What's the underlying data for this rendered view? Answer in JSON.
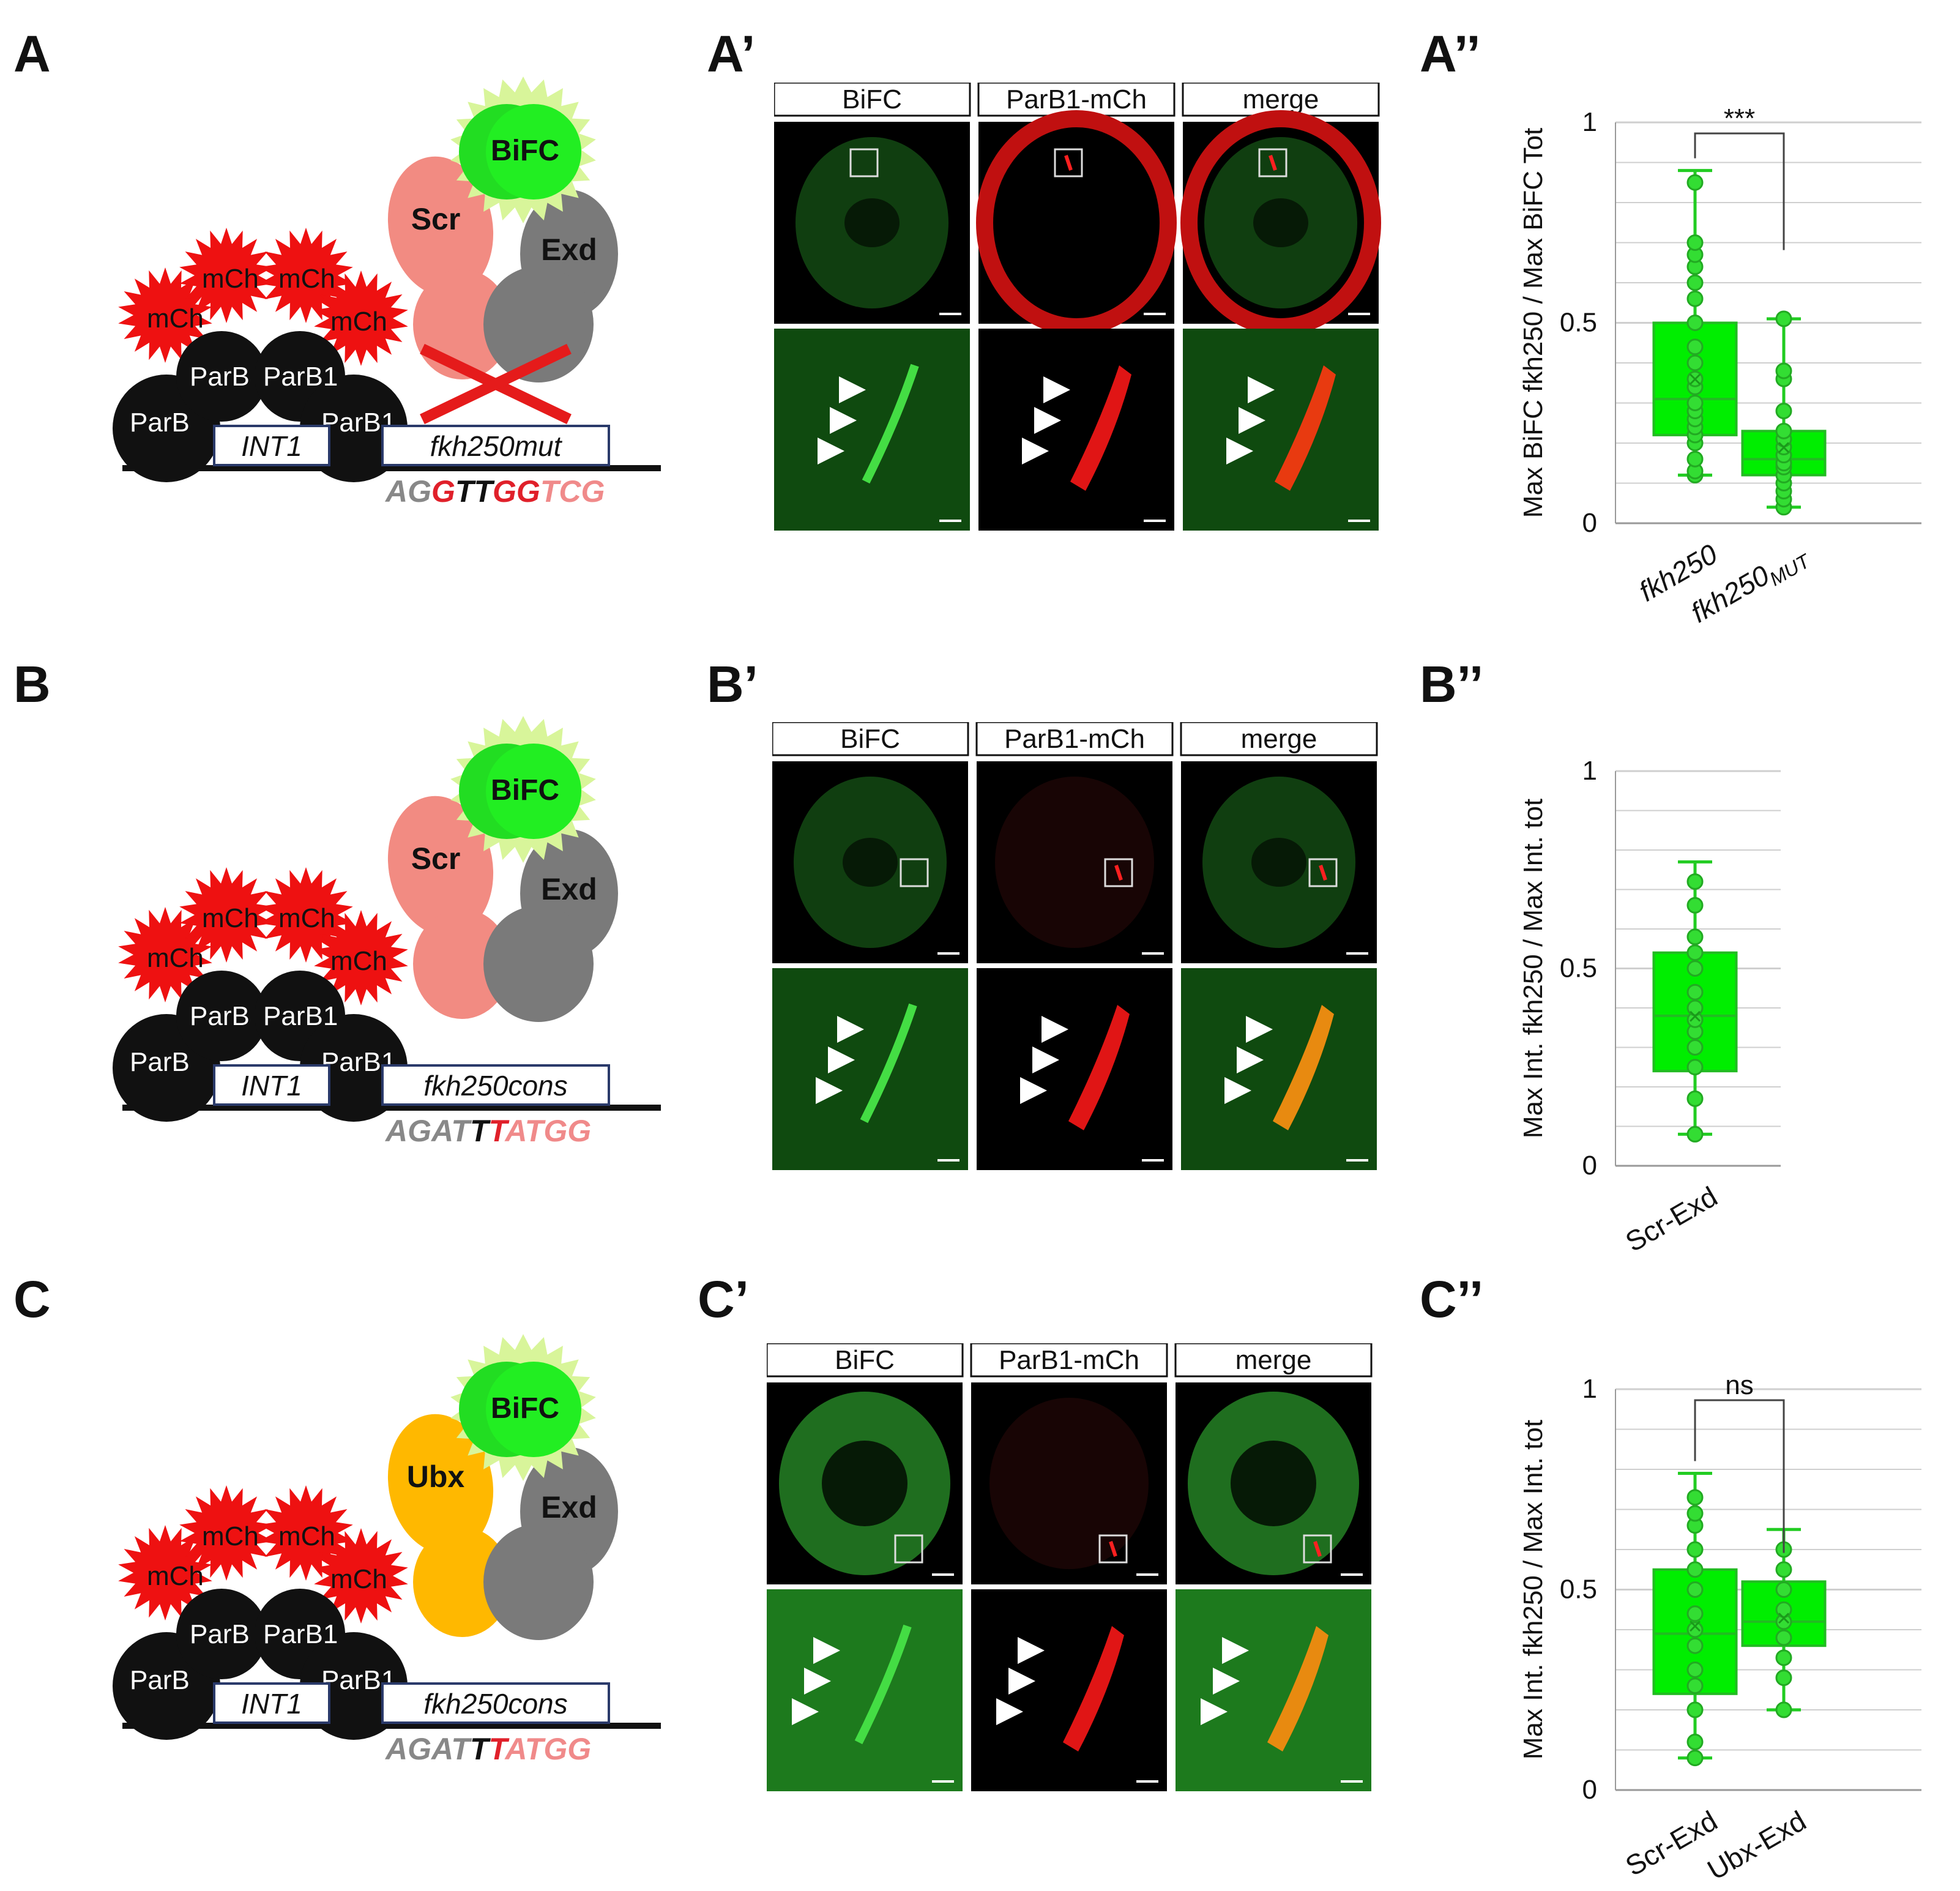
{
  "panels": {
    "A": "A",
    "A1": "A’",
    "A2": "A’’",
    "B": "B",
    "B1": "B’",
    "B2": "B’’",
    "C": "C",
    "C1": "C’",
    "C2": "C’’"
  },
  "schematics": {
    "common": {
      "mch": "mCh",
      "parb": "ParB",
      "parb1": "ParB1",
      "int1": "INT1",
      "bific": "BiFC",
      "exd": "Exd"
    },
    "A": {
      "hox": "Scr",
      "site": "fkh250mut",
      "seq": [
        "A",
        "G",
        "G",
        "T",
        "T",
        "G",
        "G",
        "T",
        "C",
        "G"
      ],
      "seq_colors": [
        "#888888",
        "#888888",
        "#e0202a",
        "#111111",
        "#111111",
        "#e0202a",
        "#e0202a",
        "#f08a8a",
        "#f08a8a",
        "#f08a8a"
      ],
      "hox_color": "#f28b82",
      "cross_color": "#e51b1b"
    },
    "B": {
      "hox": "Scr",
      "site": "fkh250cons",
      "seq": [
        "A",
        "G",
        "A",
        "T",
        "T",
        "T",
        "A",
        "T",
        "G",
        "G"
      ],
      "seq_colors": [
        "#888888",
        "#888888",
        "#888888",
        "#888888",
        "#111111",
        "#e0202a",
        "#f08a8a",
        "#f08a8a",
        "#f08a8a",
        "#f08a8a"
      ],
      "hox_color": "#f28b82"
    },
    "C": {
      "hox": "Ubx",
      "site": "fkh250cons",
      "seq": [
        "A",
        "G",
        "A",
        "T",
        "T",
        "T",
        "A",
        "T",
        "G",
        "G"
      ],
      "seq_colors": [
        "#888888",
        "#888888",
        "#888888",
        "#888888",
        "#111111",
        "#e0202a",
        "#f08a8a",
        "#f08a8a",
        "#f08a8a",
        "#f08a8a"
      ],
      "hox_color": "#ffb800"
    }
  },
  "micrographs": {
    "headers": [
      "BiFC",
      "ParB1-mCh",
      "merge"
    ]
  },
  "chart_data": [
    {
      "type": "box",
      "panel": "A’’",
      "ylabel": "Max BiFC fkh250 / Max BiFC Tot",
      "ylim": [
        0,
        1
      ],
      "yticks": [
        "0",
        "0.5",
        "1"
      ],
      "categories": [
        "fkh250",
        "fkh250MUT"
      ],
      "category_main": [
        "fkh250",
        "fkh250"
      ],
      "category_sub": [
        "",
        "MUT"
      ],
      "boxes": [
        {
          "min": 0.12,
          "q1": 0.22,
          "median": 0.31,
          "mean": 0.36,
          "q3": 0.5,
          "max": 0.88,
          "points": [
            0.12,
            0.13,
            0.16,
            0.2,
            0.22,
            0.24,
            0.26,
            0.28,
            0.3,
            0.34,
            0.36,
            0.4,
            0.44,
            0.5,
            0.56,
            0.6,
            0.64,
            0.67,
            0.7,
            0.85
          ]
        },
        {
          "min": 0.04,
          "q1": 0.12,
          "median": 0.16,
          "mean": 0.19,
          "q3": 0.23,
          "max": 0.51,
          "points": [
            0.04,
            0.06,
            0.08,
            0.1,
            0.12,
            0.14,
            0.15,
            0.17,
            0.19,
            0.21,
            0.23,
            0.28,
            0.36,
            0.38,
            0.51
          ]
        }
      ],
      "significance": "***"
    },
    {
      "type": "box",
      "panel": "B’’",
      "ylabel": "Max Int. fkh250 / Max Int. tot",
      "ylim": [
        0,
        1
      ],
      "yticks": [
        "0",
        "0.5",
        "1"
      ],
      "categories": [
        "Scr-Exd"
      ],
      "boxes": [
        {
          "min": 0.08,
          "q1": 0.24,
          "median": 0.38,
          "mean": 0.38,
          "q3": 0.54,
          "max": 0.77,
          "points": [
            0.08,
            0.17,
            0.25,
            0.3,
            0.34,
            0.37,
            0.4,
            0.44,
            0.5,
            0.54,
            0.58,
            0.66,
            0.72
          ]
        }
      ]
    },
    {
      "type": "box",
      "panel": "C’’",
      "ylabel": "Max Int. fkh250 / Max Int. tot",
      "ylim": [
        0,
        1
      ],
      "yticks": [
        "0",
        "0.5",
        "1"
      ],
      "categories": [
        "Scr-Exd",
        "Ubx-Exd"
      ],
      "boxes": [
        {
          "min": 0.08,
          "q1": 0.24,
          "median": 0.39,
          "mean": 0.41,
          "q3": 0.55,
          "max": 0.79,
          "points": [
            0.08,
            0.12,
            0.2,
            0.26,
            0.3,
            0.36,
            0.4,
            0.44,
            0.5,
            0.55,
            0.6,
            0.66,
            0.69,
            0.73
          ]
        },
        {
          "min": 0.2,
          "q1": 0.36,
          "median": 0.42,
          "mean": 0.43,
          "q3": 0.52,
          "max": 0.65,
          "points": [
            0.2,
            0.28,
            0.33,
            0.38,
            0.42,
            0.45,
            0.5,
            0.55,
            0.6
          ]
        }
      ],
      "significance": "ns"
    }
  ]
}
